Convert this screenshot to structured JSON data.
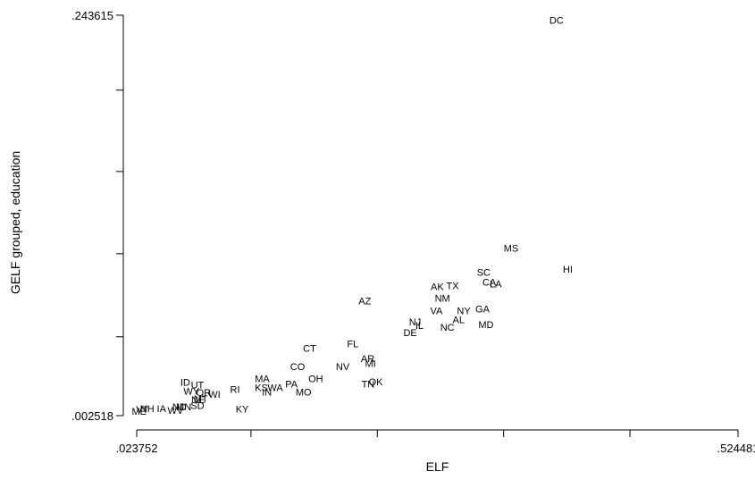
{
  "chart_data": {
    "type": "scatter",
    "title": "",
    "xlabel": "ELF",
    "ylabel": "GELF grouped, education",
    "xlim": [
      0.023752,
      0.524481
    ],
    "ylim": [
      0.002518,
      0.243615
    ],
    "x_tick_labels": [
      ".023752",
      ".524481"
    ],
    "y_tick_labels": [
      ".243615",
      ".002518"
    ],
    "x_minor_ticks": [
      0.1189,
      0.2241,
      0.3293,
      0.4345
    ],
    "y_minor_ticks": [
      0.05,
      0.1,
      0.1495,
      0.1985
    ],
    "grid": false,
    "legend": "none",
    "marker": "state abbreviation text",
    "points": [
      {
        "label": "ME",
        "x": 0.0258,
        "y": 0.0053
      },
      {
        "label": "VT",
        "x": 0.0284,
        "y": 0.0064
      },
      {
        "label": "NH",
        "x": 0.0325,
        "y": 0.0067
      },
      {
        "label": "IA",
        "x": 0.0444,
        "y": 0.0069
      },
      {
        "label": "WV",
        "x": 0.056,
        "y": 0.0058
      },
      {
        "label": "ND",
        "x": 0.0593,
        "y": 0.0079
      },
      {
        "label": "MN",
        "x": 0.0629,
        "y": 0.0078
      },
      {
        "label": "ID",
        "x": 0.0642,
        "y": 0.0226
      },
      {
        "label": "WY",
        "x": 0.0693,
        "y": 0.0174
      },
      {
        "label": "UT",
        "x": 0.0743,
        "y": 0.021
      },
      {
        "label": "NE",
        "x": 0.0748,
        "y": 0.0123
      },
      {
        "label": "MT",
        "x": 0.0771,
        "y": 0.0128
      },
      {
        "label": "SD",
        "x": 0.0743,
        "y": 0.0088
      },
      {
        "label": "OR",
        "x": 0.0795,
        "y": 0.0165
      },
      {
        "label": "WI",
        "x": 0.0885,
        "y": 0.0153
      },
      {
        "label": "RI",
        "x": 0.1056,
        "y": 0.0183
      },
      {
        "label": "KY",
        "x": 0.1116,
        "y": 0.0066
      },
      {
        "label": "MA",
        "x": 0.1283,
        "y": 0.0248
      },
      {
        "label": "KS",
        "x": 0.1276,
        "y": 0.0194
      },
      {
        "label": "IN",
        "x": 0.1322,
        "y": 0.0167
      },
      {
        "label": "WA",
        "x": 0.1391,
        "y": 0.0194
      },
      {
        "label": "PA",
        "x": 0.1526,
        "y": 0.0215
      },
      {
        "label": "MO",
        "x": 0.1627,
        "y": 0.0167
      },
      {
        "label": "CO",
        "x": 0.1577,
        "y": 0.0322
      },
      {
        "label": "OH",
        "x": 0.1728,
        "y": 0.0248
      },
      {
        "label": "CT",
        "x": 0.1677,
        "y": 0.0431
      },
      {
        "label": "NV",
        "x": 0.1953,
        "y": 0.0322
      },
      {
        "label": "FL",
        "x": 0.2037,
        "y": 0.0459
      },
      {
        "label": "AZ",
        "x": 0.2137,
        "y": 0.0717
      },
      {
        "label": "AR",
        "x": 0.2161,
        "y": 0.037
      },
      {
        "label": "MI",
        "x": 0.2184,
        "y": 0.034
      },
      {
        "label": "TN",
        "x": 0.2164,
        "y": 0.0215
      },
      {
        "label": "OK",
        "x": 0.2228,
        "y": 0.0231
      },
      {
        "label": "DE",
        "x": 0.2515,
        "y": 0.0525
      },
      {
        "label": "NJ",
        "x": 0.2555,
        "y": 0.0589
      },
      {
        "label": "IL",
        "x": 0.2592,
        "y": 0.057
      },
      {
        "label": "AK",
        "x": 0.274,
        "y": 0.0803
      },
      {
        "label": "NM",
        "x": 0.2783,
        "y": 0.0733
      },
      {
        "label": "VA",
        "x": 0.2733,
        "y": 0.0658
      },
      {
        "label": "TX",
        "x": 0.2868,
        "y": 0.0808
      },
      {
        "label": "NC",
        "x": 0.2824,
        "y": 0.0559
      },
      {
        "label": "AL",
        "x": 0.2918,
        "y": 0.0605
      },
      {
        "label": "NY",
        "x": 0.2961,
        "y": 0.0658
      },
      {
        "label": "SC",
        "x": 0.3127,
        "y": 0.0888
      },
      {
        "label": "CA",
        "x": 0.3173,
        "y": 0.0829
      },
      {
        "label": "LA",
        "x": 0.3227,
        "y": 0.0819
      },
      {
        "label": "GA",
        "x": 0.3117,
        "y": 0.0669
      },
      {
        "label": "MD",
        "x": 0.3146,
        "y": 0.0573
      },
      {
        "label": "MS",
        "x": 0.3355,
        "y": 0.1033
      },
      {
        "label": "HI",
        "x": 0.3827,
        "y": 0.0909
      },
      {
        "label": "DC",
        "x": 0.3733,
        "y": 0.2406
      }
    ]
  }
}
